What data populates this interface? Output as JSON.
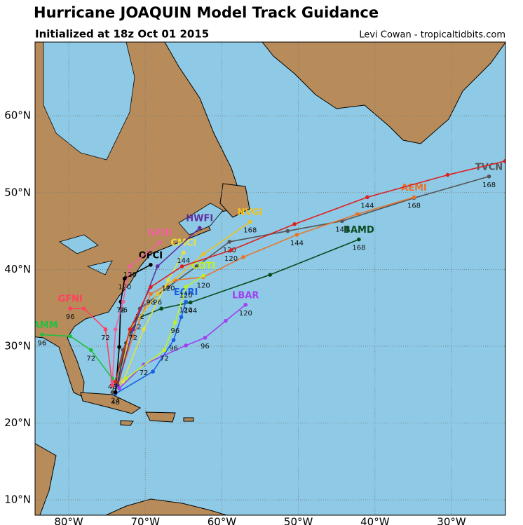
{
  "map": {
    "title": "Hurricane JOAQUIN Model Track Guidance",
    "subtitle": "Initialized at 18z Oct 01 2015",
    "credit": "Levi Cowan - tropicaltidbits.com",
    "xlim": [
      -84.4,
      -22.95
    ],
    "ylim": [
      8.0,
      69.6
    ],
    "xticks": [
      {
        "value": -80,
        "label": "80°W"
      },
      {
        "value": -70,
        "label": "70°W"
      },
      {
        "value": -60,
        "label": "60°W"
      },
      {
        "value": -50,
        "label": "50°W"
      },
      {
        "value": -40,
        "label": "40°W"
      },
      {
        "value": -30,
        "label": "30°W"
      }
    ],
    "yticks": [
      {
        "value": 10,
        "label": "10°N"
      },
      {
        "value": 20,
        "label": "20°N"
      },
      {
        "value": 30,
        "label": "30°N"
      },
      {
        "value": 40,
        "label": "40°N"
      },
      {
        "value": 50,
        "label": "50°N"
      },
      {
        "value": 60,
        "label": "60°N"
      }
    ],
    "grid": true,
    "tracks": [
      {
        "name": "TVCN",
        "color": "#555555",
        "lon": [
          -74.3,
          -72.9,
          -70.7,
          -67.0,
          -63.3,
          -59.0,
          -51.4,
          -44.3,
          -34.9,
          -25.1
        ],
        "lat": [
          24.0,
          29.5,
          34.9,
          37.7,
          40.4,
          43.6,
          45.0,
          46.3,
          49.3,
          52.1
        ],
        "hours": [
          null,
          null,
          "72",
          null,
          null,
          "120",
          null,
          "144",
          null,
          "168"
        ]
      },
      {
        "name": "AEMI",
        "color": "#e8742a",
        "lon": [
          -73.4,
          -71.6,
          -69.3,
          -66.1,
          -62.4,
          -57.2,
          -50.2,
          -42.3,
          -34.9
        ],
        "lat": [
          25.8,
          31.3,
          36.8,
          38.6,
          39.0,
          41.6,
          44.5,
          47.2,
          49.4
        ],
        "hours": [
          null,
          null,
          "96",
          null,
          "120",
          null,
          "144",
          null,
          "168"
        ]
      },
      {
        "name": "BAMD",
        "color": "#0a4a20",
        "lon": [
          -73.9,
          -72.5,
          -71.1,
          -67.9,
          -64.1,
          -53.7,
          -42.1
        ],
        "lat": [
          24.0,
          30.4,
          33.6,
          34.9,
          35.7,
          39.3,
          43.9
        ],
        "hours": [
          null,
          null,
          "72",
          null,
          "144",
          null,
          "168"
        ]
      },
      {
        "name": "LBAR",
        "color": "#a040f0",
        "lon": [
          -73.4,
          -70.2,
          -64.7,
          -62.2,
          -59.5,
          -56.9
        ],
        "lat": [
          24.5,
          27.6,
          30.1,
          31.1,
          33.3,
          35.4
        ],
        "hours": [
          null,
          "72",
          null,
          "96",
          null,
          "120"
        ]
      },
      {
        "name": "EGRI",
        "color": "#1a5fe0",
        "lon": [
          -73.9,
          -69.0,
          -66.3,
          -65.3,
          -64.7
        ],
        "lat": [
          23.8,
          26.7,
          30.8,
          33.8,
          35.8
        ],
        "hours": [
          "48",
          null,
          "96",
          null,
          "120"
        ]
      },
      {
        "name": "NVGI",
        "color": "#f0c020",
        "lon": [
          -73.4,
          -72.0,
          -68.4,
          -62.4,
          -56.3
        ],
        "lat": [
          25.1,
          32.2,
          36.8,
          42.0,
          46.2
        ],
        "hours": [
          null,
          null,
          "96",
          null,
          "168"
        ]
      },
      {
        "name": "CMCI",
        "color": "#e8e040",
        "lon": [
          -72.9,
          -70.2,
          -67.0,
          -65.0
        ],
        "lat": [
          25.4,
          32.2,
          38.6,
          42.2
        ],
        "hours": [
          null,
          null,
          "120",
          "144"
        ]
      },
      {
        "name": "HWFI",
        "color": "#6030a0",
        "lon": [
          -73.6,
          -71.6,
          -68.4,
          -62.9
        ],
        "lat": [
          24.9,
          32.2,
          40.4,
          45.4
        ],
        "hours": [
          null,
          "72",
          null,
          null
        ]
      },
      {
        "name": "OFCI",
        "color": "#000000",
        "lon": [
          -73.9,
          -73.4,
          -73.2,
          -72.7,
          -69.3
        ],
        "lat": [
          24.0,
          29.9,
          35.8,
          38.8,
          40.6
        ],
        "hours": [
          "24",
          null,
          "72",
          "120",
          null
        ]
      },
      {
        "name": "GFDI",
        "color": "#f060a0",
        "lon": [
          -74.3,
          -73.9,
          -72.9,
          -72.0,
          -68.1
        ],
        "lat": [
          25.4,
          32.2,
          35.8,
          40.4,
          43.5
        ],
        "hours": [
          null,
          null,
          "96",
          "120",
          null
        ]
      },
      {
        "name": "COTI",
        "color": "#c0f020",
        "lon": [
          -72.5,
          -67.5,
          -66.1,
          -64.7,
          -62.4
        ],
        "lat": [
          25.8,
          29.5,
          33.1,
          37.7,
          39.2
        ],
        "hours": [
          null,
          "72",
          "96",
          "120",
          null
        ]
      },
      {
        "name": "BAMM",
        "color": "#20c040",
        "lon": [
          -74.3,
          -77.1,
          -79.8,
          -83.5
        ],
        "lat": [
          25.8,
          29.5,
          31.3,
          31.5
        ],
        "hours": [
          "48",
          "72",
          null,
          "96"
        ]
      },
      {
        "name": "GFNI",
        "color": "#ff4060",
        "lon": [
          -74.3,
          -75.2,
          -78.0,
          -79.8
        ],
        "lat": [
          24.9,
          32.2,
          34.9,
          34.9
        ],
        "hours": [
          null,
          "72",
          null,
          "96"
        ]
      },
      {
        "name": "",
        "color": "#dd2020",
        "lon": [
          -73.9,
          -72.0,
          -69.3,
          -65.2,
          -58.8,
          -50.5,
          -41.0,
          -30.5,
          -23.0
        ],
        "lat": [
          25.4,
          32.2,
          37.7,
          40.4,
          42.5,
          45.9,
          49.4,
          52.3,
          54.1
        ],
        "hours": [
          null,
          null,
          null,
          null,
          "120",
          null,
          "144",
          null,
          null
        ]
      }
    ]
  }
}
